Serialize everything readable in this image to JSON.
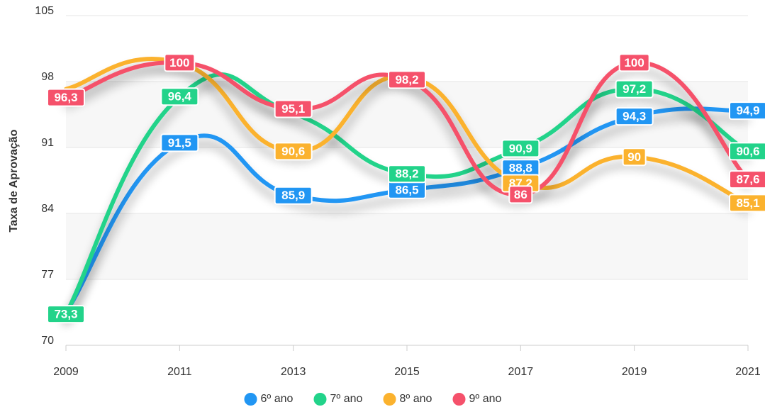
{
  "chart_data": {
    "type": "line",
    "y_label": "Taxa de Aprovação",
    "x": [
      2009,
      2011,
      2013,
      2015,
      2017,
      2019,
      2021
    ],
    "xlim": [
      2009,
      2021
    ],
    "xticks": [
      2009,
      2011,
      2013,
      2015,
      2017,
      2019,
      2021
    ],
    "ylim": [
      70,
      105
    ],
    "yticks": [
      70,
      77,
      84,
      91,
      98,
      105
    ],
    "grid": true,
    "legend": "bottom",
    "series": [
      {
        "name": "6º ano",
        "color": "#2196f3",
        "values": [
          73.5,
          91.5,
          85.9,
          86.5,
          88.8,
          94.3,
          94.9
        ],
        "value_labels": [
          null,
          "91,5",
          "85,9",
          "86,5",
          "88,8",
          "94,3",
          "94,9"
        ]
      },
      {
        "name": "7º ano",
        "color": "#22d38a",
        "values": [
          73.3,
          96.4,
          94.6,
          88.2,
          90.9,
          97.2,
          90.6
        ],
        "value_labels": [
          "73,3",
          "96,4",
          null,
          "88,2",
          "90,9",
          "97,2",
          "90,6"
        ]
      },
      {
        "name": "8º ano",
        "color": "#fbb22e",
        "values": [
          97.2,
          100,
          90.6,
          98.5,
          87.2,
          90,
          85.1
        ],
        "value_labels": [
          null,
          null,
          "90,6",
          null,
          "87,2",
          "90",
          "85,1"
        ]
      },
      {
        "name": "9º ano",
        "color": "#f5516b",
        "values": [
          96.3,
          100,
          95.1,
          98.2,
          86,
          100,
          87.6
        ],
        "value_labels": [
          "96,3",
          "100",
          "95,1",
          "98,2",
          "86",
          "100",
          "87,6"
        ]
      }
    ]
  }
}
